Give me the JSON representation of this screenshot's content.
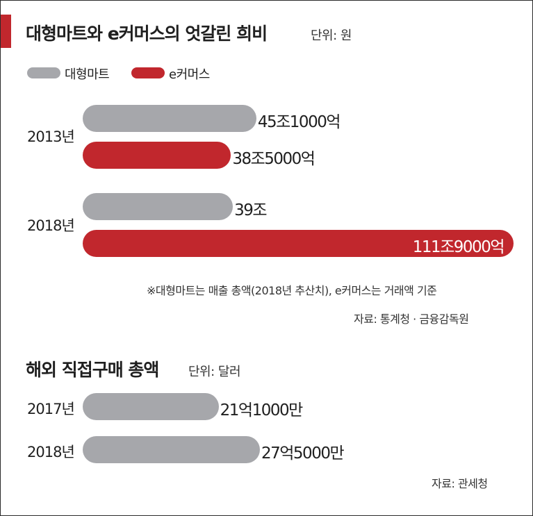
{
  "colors": {
    "mart": "#a6a7ab",
    "ecommerce": "#c1272d",
    "accent": "#c1272d"
  },
  "header": {
    "title": "대형마트와 e커머스의 엇갈린 희비",
    "unit": "단위: 원"
  },
  "legend": {
    "items": [
      {
        "label": "대형마트",
        "color": "#a6a7ab"
      },
      {
        "label": "e커머스",
        "color": "#c1272d"
      }
    ]
  },
  "notes": {
    "footnote": "※대형마트는 매출 총액(2018년 추산치), e커머스는 거래액 기준",
    "source1": "자료: 통계청 · 금융감독원",
    "source2": "자료: 관세청"
  },
  "section2": {
    "title": "해외 직접구매 총액",
    "unit": "단위: 달러"
  },
  "chart_data": [
    {
      "type": "bar",
      "orientation": "horizontal",
      "title": "대형마트와 e커머스의 엇갈린 희비",
      "unit": "단위: 원",
      "categories": [
        "2013년",
        "2018년"
      ],
      "series": [
        {
          "name": "대형마트",
          "values": [
            45.1,
            39.0
          ],
          "labels": [
            "45조1000억",
            "39조"
          ],
          "color": "#a6a7ab"
        },
        {
          "name": "e커머스",
          "values": [
            38.5,
            111.9
          ],
          "labels": [
            "38조5000억",
            "111조9000억"
          ],
          "color": "#c1272d"
        }
      ],
      "value_unit": "조원",
      "xlim": [
        0,
        111.9
      ],
      "grid": false,
      "legend": "top-left"
    },
    {
      "type": "bar",
      "orientation": "horizontal",
      "title": "해외 직접구매 총액",
      "unit": "단위: 달러",
      "categories": [
        "2017년",
        "2018년"
      ],
      "values": [
        21.1,
        27.5
      ],
      "labels": [
        "21억1000만",
        "27억5000만"
      ],
      "value_unit": "억달러",
      "color": "#a6a7ab",
      "grid": false
    }
  ]
}
